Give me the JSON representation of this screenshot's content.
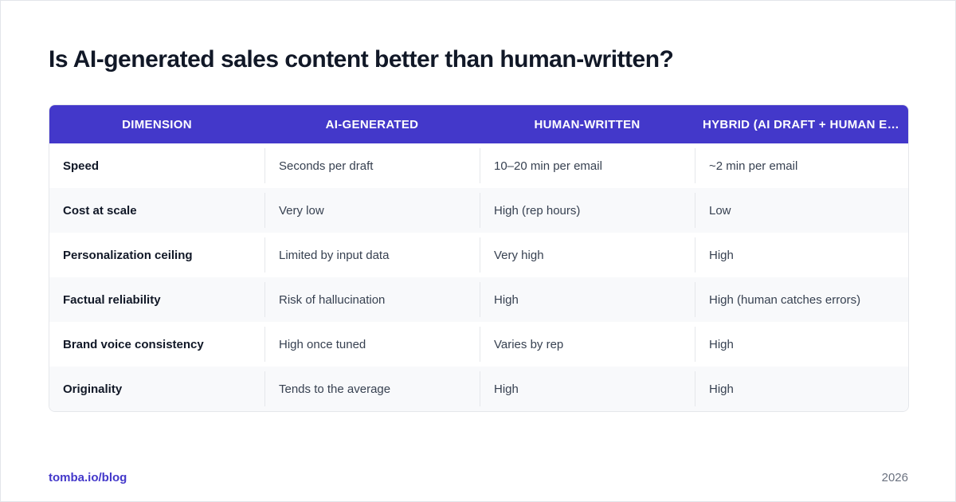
{
  "title": "Is AI-generated sales content better than human-written?",
  "table": {
    "headers": [
      "DIMENSION",
      "AI-GENERATED",
      "HUMAN-WRITTEN",
      "HYBRID (AI DRAFT + HUMAN EDIT)"
    ],
    "rows": [
      [
        "Speed",
        "Seconds per draft",
        "10–20 min per email",
        "~2 min per email"
      ],
      [
        "Cost at scale",
        "Very low",
        "High (rep hours)",
        "Low"
      ],
      [
        "Personalization ceiling",
        "Limited by input data",
        "Very high",
        "High"
      ],
      [
        "Factual reliability",
        "Risk of hallucination",
        "High",
        "High (human catches errors)"
      ],
      [
        "Brand voice consistency",
        "High once tuned",
        "Varies by rep",
        "High"
      ],
      [
        "Originality",
        "Tends to the average",
        "High",
        "High"
      ]
    ]
  },
  "footer": {
    "link": "tomba.io/blog",
    "year": "2026"
  },
  "colors": {
    "header_bg": "#4338ca",
    "accent": "#4338ca"
  }
}
